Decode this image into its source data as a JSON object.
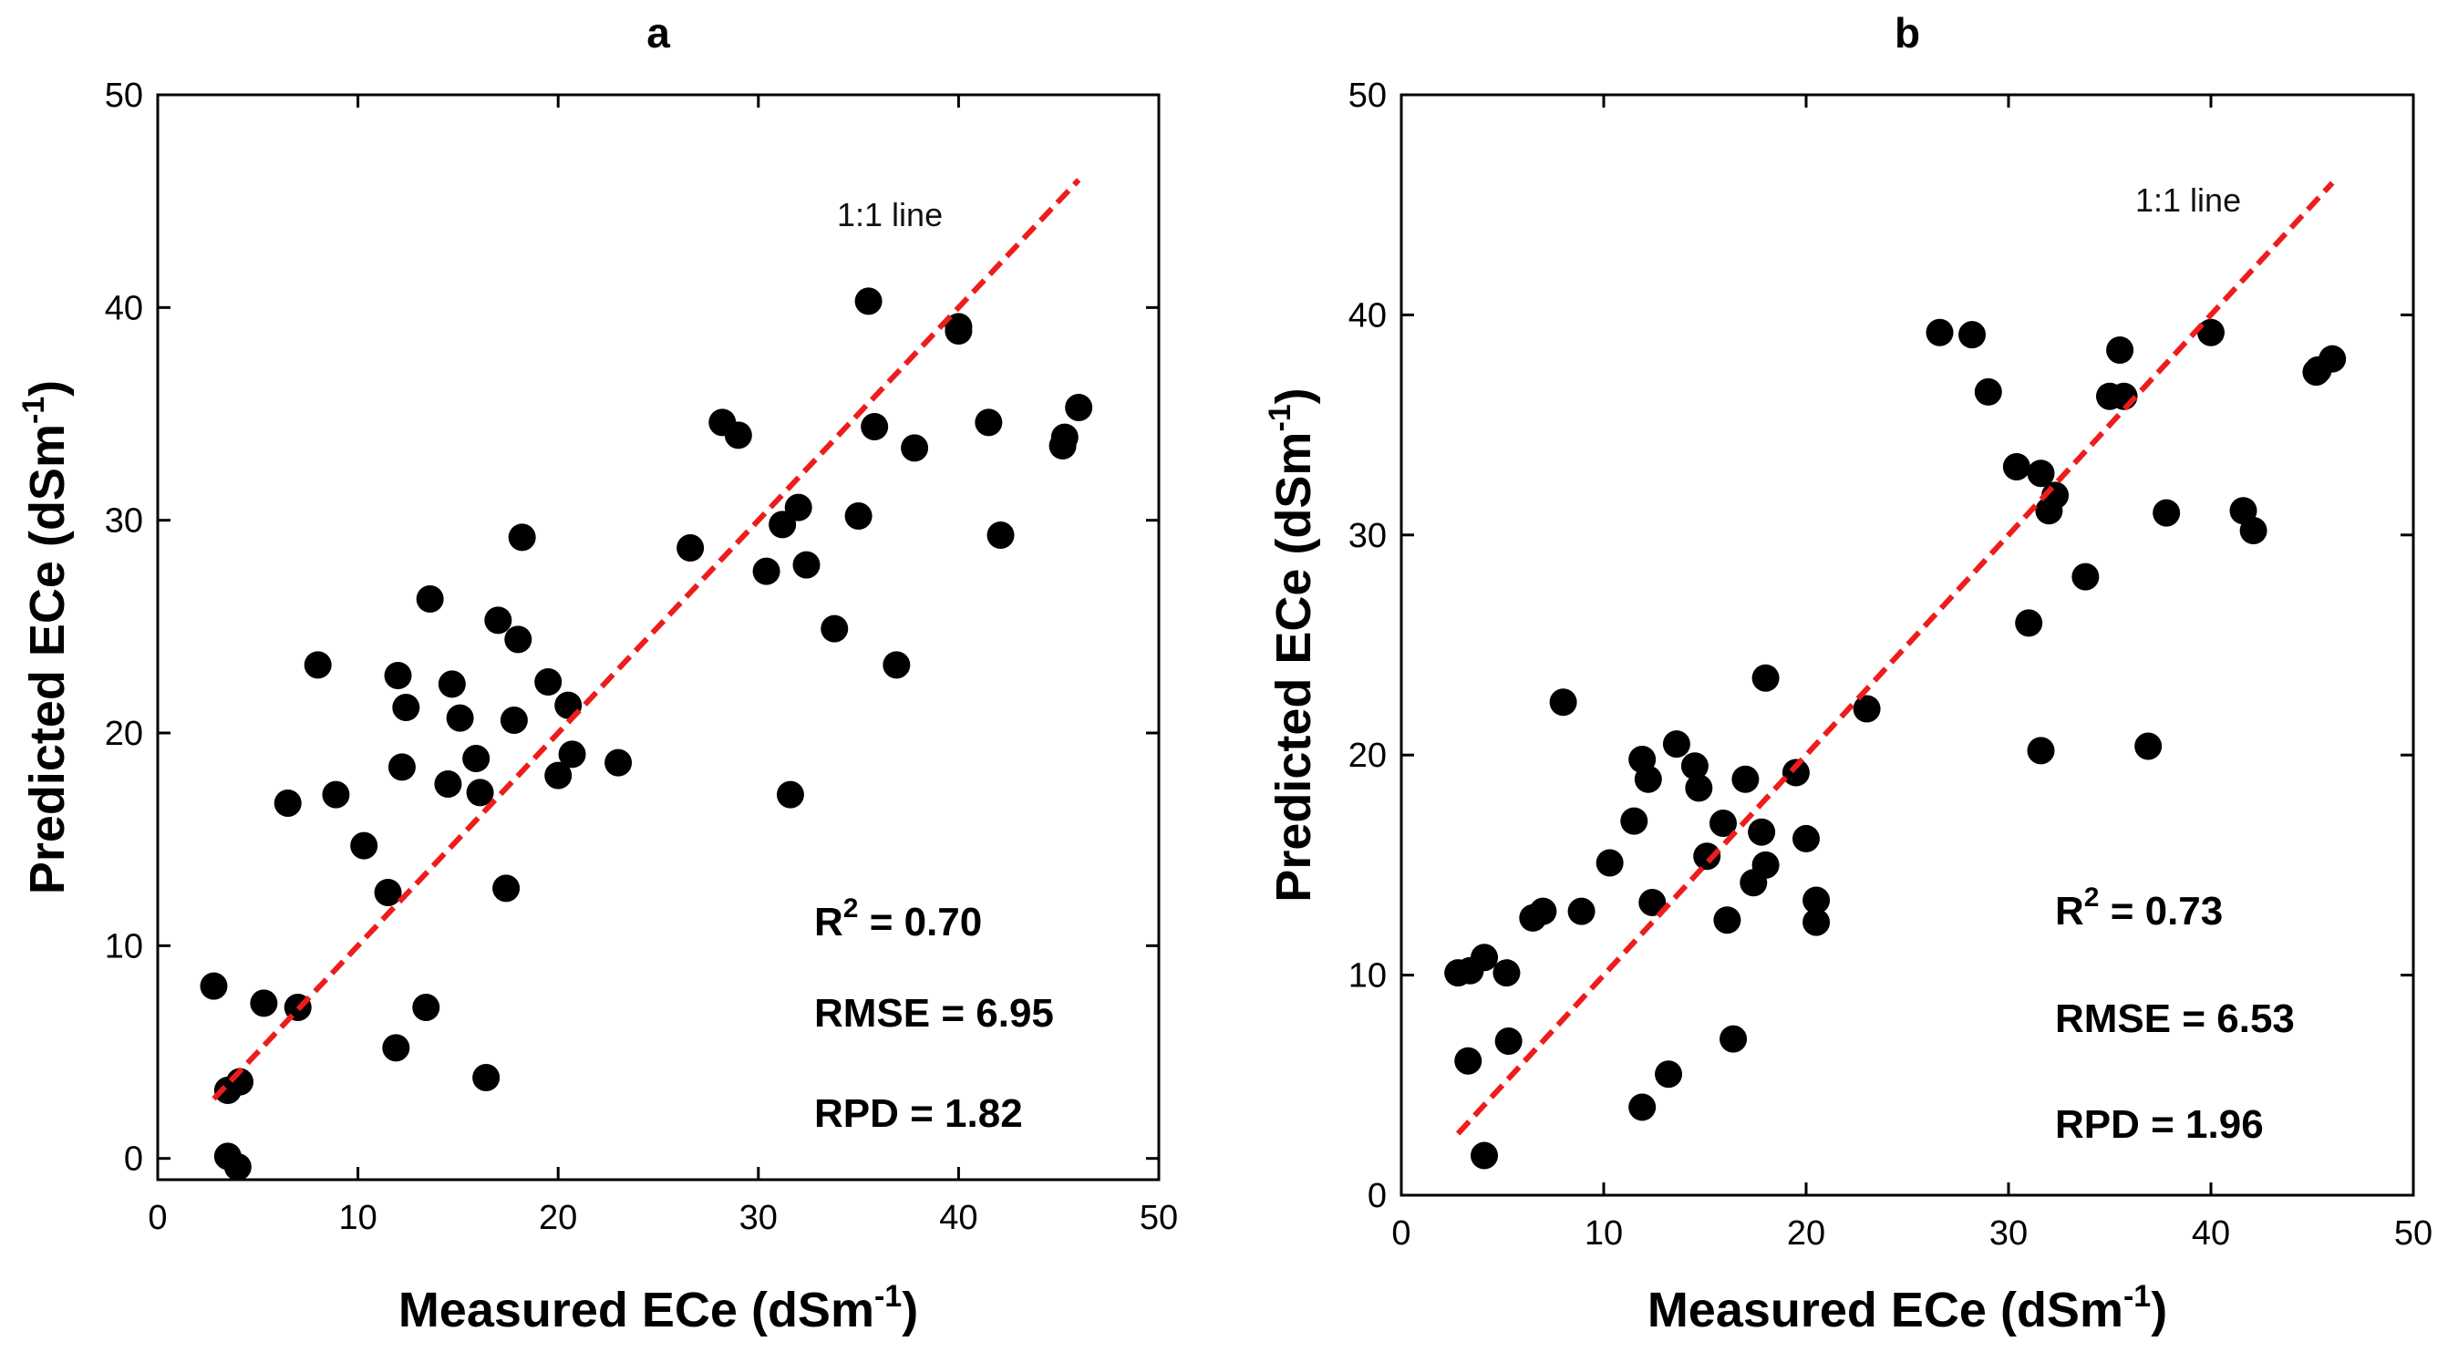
{
  "chart_data": [
    {
      "type": "scatter",
      "panel": "a",
      "title": "a",
      "xlabel": "Measured ECe (dSm",
      "ylabel": "Predicted ECe (dSm",
      "unit_superscript": "-1",
      "xlim": [
        0,
        50
      ],
      "ylim": [
        -1,
        50
      ],
      "xticks": [
        0,
        10,
        20,
        30,
        40,
        50
      ],
      "yticks": [
        0,
        10,
        20,
        30,
        40,
        50
      ],
      "grid": false,
      "reference_line": {
        "label": "1:1 line",
        "x": [
          2.8,
          46
        ],
        "y": [
          2.8,
          46
        ],
        "color": "#ee1c1c",
        "style": "dashed"
      },
      "stats": [
        {
          "prefix": "R",
          "sup": "2",
          "text": " = 0.70"
        },
        {
          "prefix": "RMSE = 6.95",
          "sup": "",
          "text": ""
        },
        {
          "prefix": "RPD = 1.82",
          "sup": "",
          "text": ""
        }
      ],
      "series": [
        {
          "name": "samples",
          "color": "#000000",
          "x": [
            2.8,
            3.5,
            4.1,
            3.5,
            4.0,
            5.3,
            7.0,
            6.5,
            8.0,
            8.9,
            10.3,
            11.5,
            11.9,
            12.0,
            12.2,
            12.4,
            13.4,
            13.6,
            14.5,
            14.7,
            15.1,
            15.9,
            16.1,
            16.4,
            17.0,
            17.4,
            17.8,
            18.0,
            18.2,
            19.5,
            20.0,
            20.5,
            20.7,
            23.0,
            26.6,
            28.2,
            29.0,
            30.4,
            31.2,
            31.6,
            32.0,
            32.4,
            33.8,
            35.0,
            35.5,
            35.8,
            36.9,
            37.8,
            40.0,
            40.0,
            41.5,
            42.1,
            45.2,
            45.3,
            46.0
          ],
          "y": [
            8.1,
            3.2,
            3.6,
            0.1,
            -0.4,
            7.3,
            7.1,
            16.7,
            23.2,
            17.1,
            14.7,
            12.5,
            5.2,
            22.7,
            18.4,
            21.2,
            7.1,
            26.3,
            17.6,
            22.3,
            20.7,
            18.8,
            17.2,
            3.8,
            25.3,
            12.7,
            20.6,
            24.4,
            29.2,
            22.4,
            18.0,
            21.3,
            19.0,
            18.6,
            28.7,
            34.6,
            34.0,
            27.6,
            29.8,
            17.1,
            30.6,
            27.9,
            24.9,
            30.2,
            40.3,
            34.4,
            23.2,
            33.4,
            38.9,
            39.1,
            34.6,
            29.3,
            33.5,
            33.9,
            35.3
          ]
        }
      ]
    },
    {
      "type": "scatter",
      "panel": "b",
      "title": "b",
      "xlabel": "Measured ECe (dSm",
      "ylabel": "Predicted ECe (dSm",
      "unit_superscript": "-1",
      "xlim": [
        0,
        50
      ],
      "ylim": [
        0,
        50
      ],
      "xticks": [
        0,
        10,
        20,
        30,
        40,
        50
      ],
      "yticks": [
        0,
        10,
        20,
        30,
        40,
        50
      ],
      "grid": false,
      "reference_line": {
        "label": "1:1 line",
        "x": [
          2.8,
          46
        ],
        "y": [
          2.8,
          46
        ],
        "color": "#ee1c1c",
        "style": "dashed"
      },
      "stats": [
        {
          "prefix": "R",
          "sup": "2",
          "text": " = 0.73"
        },
        {
          "prefix": "RMSE = 6.53",
          "sup": "",
          "text": ""
        },
        {
          "prefix": "RPD = 1.96",
          "sup": "",
          "text": ""
        }
      ],
      "series": [
        {
          "name": "samples",
          "color": "#000000",
          "x": [
            2.8,
            3.4,
            3.3,
            4.1,
            5.2,
            5.3,
            4.1,
            6.5,
            7.0,
            8.0,
            8.9,
            10.3,
            11.5,
            11.9,
            12.2,
            12.4,
            11.9,
            13.2,
            13.6,
            14.5,
            14.7,
            15.1,
            15.9,
            16.1,
            16.4,
            17.0,
            17.4,
            17.8,
            18.0,
            18.0,
            19.5,
            20.0,
            20.5,
            20.5,
            23.0,
            26.6,
            28.2,
            29.0,
            30.4,
            31.0,
            31.6,
            31.6,
            32.0,
            32.3,
            33.8,
            35.0,
            35.5,
            35.7,
            36.9,
            37.8,
            40.0,
            41.6,
            42.1,
            45.2,
            45.3,
            46.0
          ],
          "y": [
            10.1,
            10.2,
            6.1,
            10.8,
            10.1,
            7.0,
            1.8,
            12.6,
            12.9,
            22.4,
            12.9,
            15.1,
            17.0,
            19.8,
            18.9,
            13.3,
            4.0,
            5.5,
            20.5,
            19.5,
            18.5,
            15.4,
            16.9,
            12.5,
            7.1,
            18.9,
            14.2,
            16.5,
            15.0,
            23.5,
            19.2,
            16.2,
            13.4,
            12.4,
            22.1,
            39.2,
            39.1,
            36.5,
            33.1,
            26.0,
            32.8,
            20.2,
            31.1,
            31.8,
            28.1,
            36.3,
            38.4,
            36.3,
            20.4,
            31.0,
            39.2,
            31.1,
            30.2,
            37.4,
            37.5,
            38.0
          ]
        }
      ]
    }
  ]
}
